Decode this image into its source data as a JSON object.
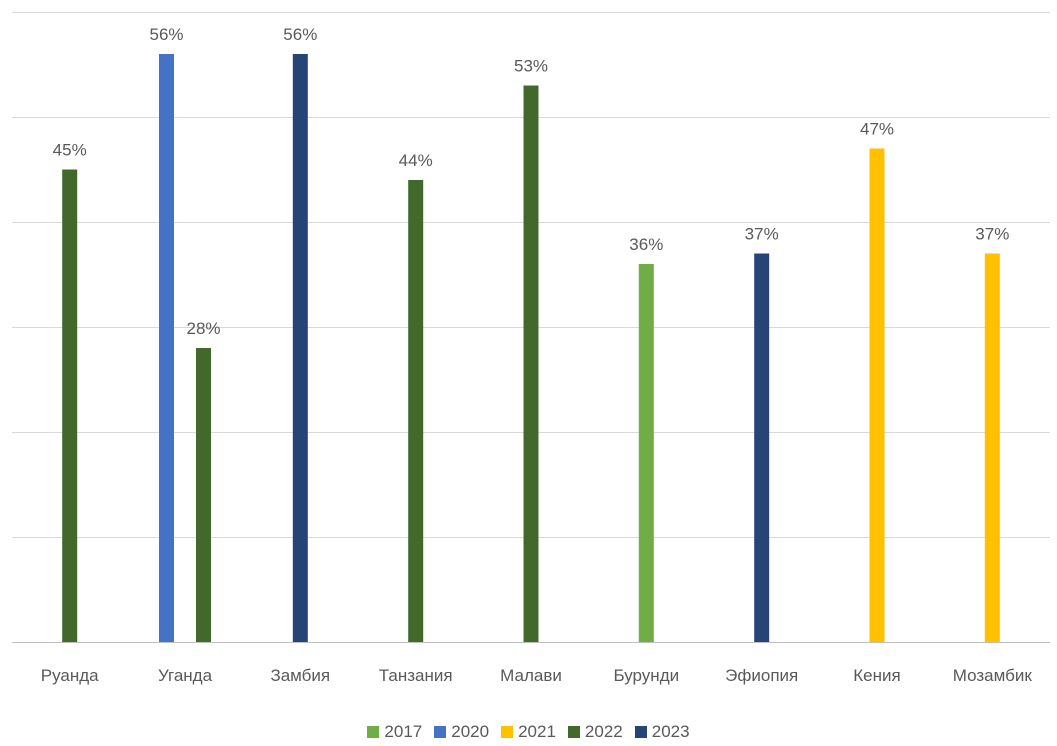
{
  "chart_data": {
    "type": "bar",
    "categories": [
      "Руанда",
      "Уганда",
      "Замбия",
      "Танзания",
      "Малави",
      "Бурунди",
      "Эфиопия",
      "Кения",
      "Мозамбик"
    ],
    "series": [
      {
        "name": "2017",
        "color": "#70AD47",
        "values": [
          null,
          null,
          null,
          null,
          null,
          36,
          null,
          null,
          null
        ]
      },
      {
        "name": "2020",
        "color": "#4472C4",
        "values": [
          null,
          56,
          null,
          null,
          null,
          null,
          null,
          null,
          null
        ]
      },
      {
        "name": "2021",
        "color": "#FFC000",
        "values": [
          null,
          null,
          null,
          null,
          null,
          null,
          null,
          47,
          37
        ]
      },
      {
        "name": "2022",
        "color": "#43682B",
        "values": [
          45,
          28,
          null,
          44,
          53,
          null,
          null,
          null,
          null
        ]
      },
      {
        "name": "2023",
        "color": "#264478",
        "values": [
          null,
          null,
          56,
          null,
          null,
          null,
          37,
          null,
          null
        ]
      }
    ],
    "value_suffix": "%",
    "ylim": [
      0,
      60
    ],
    "grid": true,
    "legend_position": "bottom"
  }
}
